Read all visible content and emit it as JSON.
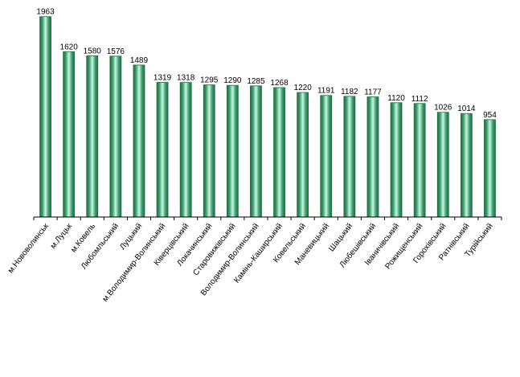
{
  "chart_data": {
    "type": "bar",
    "categories": [
      "м.Нововолинськ",
      "м.Луцьк",
      "м.Ковель",
      "Любомльський",
      "Луцький",
      "м.Володимир-Волинський",
      "Ківерцівський",
      "Локачинський",
      "Старовижівський",
      "Володимир-Волинський",
      "Камінь-Каширський",
      "Ковельський",
      "Маневицький",
      "Шацький",
      "Любешівський",
      "Іваничівський",
      "Рожищенський",
      "Горохівський",
      "Ратнівський",
      "Турійський"
    ],
    "values": [
      1963,
      1620,
      1580,
      1576,
      1489,
      1319,
      1318,
      1295,
      1290,
      1285,
      1268,
      1220,
      1191,
      1182,
      1177,
      1120,
      1112,
      1026,
      1014,
      954
    ],
    "value_labels": [
      "1963",
      "1620",
      "1580",
      "1576",
      "1489",
      "1319",
      "1318",
      "1295",
      "1290",
      "1285",
      "1268",
      "1220",
      "1191",
      "1182",
      "1177",
      "1120",
      "1112",
      "1026",
      "1014",
      "954"
    ],
    "title": "",
    "xlabel": "",
    "ylabel": "",
    "ylim": [
      0,
      2000
    ],
    "grid": false,
    "legend": "none",
    "colors": {
      "bar_dark": "#1f6e45",
      "bar_mid": "#4fae78",
      "bar_light": "#ccf4ee",
      "axis": "#000000"
    }
  }
}
